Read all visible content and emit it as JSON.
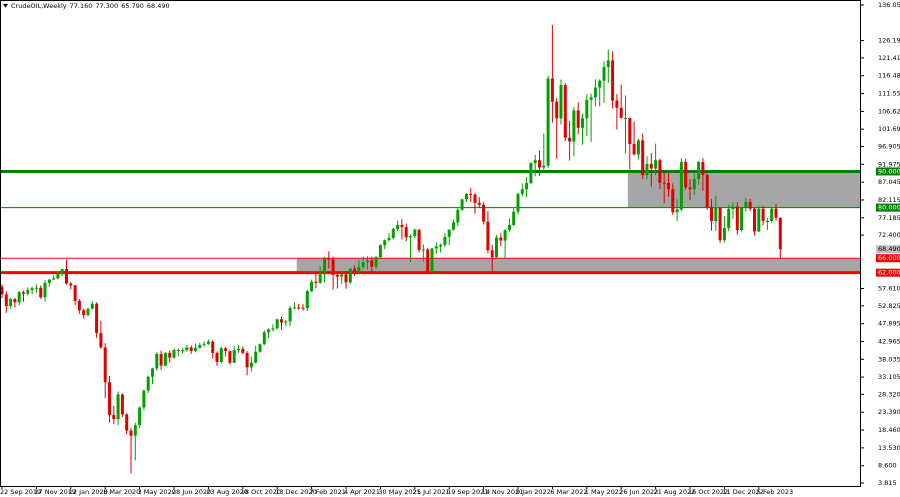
{
  "chart_data": {
    "type": "candlestick",
    "title": "CrudeOIL,Weekly",
    "header_values": [
      {
        "value": 77.16,
        "label": "77.160"
      },
      {
        "value": 77.3,
        "label": "77.300"
      },
      {
        "value": 65.79,
        "label": "65.790"
      },
      {
        "value": 68.49,
        "label": "68.490"
      }
    ],
    "up_color": "#00a000",
    "down_color": "#e00000",
    "ylim": [
      3.815,
      136.05
    ],
    "yticks": [
      {
        "value": 136.05,
        "label": "136.050"
      },
      126.195,
      {
        "value": 121.41,
        "label": "121.410"
      },
      116.485,
      {
        "value": 111.55,
        "label": "111.550"
      },
      {
        "value": 106.62,
        "label": "106.620"
      },
      {
        "value": 101.69,
        "label": "101.690"
      },
      96.905,
      91.975,
      87.045,
      82.115,
      77.185,
      {
        "value": 72.4,
        "label": "72.400"
      },
      {
        "value": 57.61,
        "label": "57.610"
      },
      52.825,
      47.895,
      42.965,
      38.035,
      33.105,
      {
        "value": 28.32,
        "label": "28.320"
      },
      {
        "value": 23.39,
        "label": "23.390"
      },
      {
        "value": 18.46,
        "label": "18.460"
      },
      {
        "value": 13.53,
        "label": "13.530"
      },
      {
        "value": 8.6,
        "label": "8.600"
      },
      3.815
    ],
    "levels": [
      {
        "value": 90,
        "label": "90.000",
        "color": "#008000",
        "thick": true
      },
      {
        "value": 80,
        "label": "80.000",
        "color": "#008000",
        "thick": false
      },
      {
        "value": 66,
        "label": "66.000",
        "color": "#ff0000",
        "thick": false
      },
      {
        "value": 62,
        "label": "62.000",
        "color": "#ff0000",
        "thick": true
      }
    ],
    "zones": [
      {
        "low": 80,
        "high": 90,
        "color": "#a6a6a6"
      },
      {
        "low": 62,
        "high": 66,
        "color": "#a6a6a6"
      }
    ],
    "price_tag": {
      "value": 68.49,
      "label": "68.490"
    },
    "categories": [
      "22 Sep 2019",
      null,
      null,
      null,
      null,
      null,
      null,
      null,
      "17 Nov 2019",
      null,
      null,
      null,
      null,
      null,
      null,
      null,
      "12 Jan 2020",
      null,
      null,
      null,
      null,
      null,
      null,
      null,
      "8 Mar 2020",
      null,
      null,
      null,
      null,
      null,
      null,
      null,
      "3 May 2020",
      null,
      null,
      null,
      null,
      null,
      null,
      null,
      "28 Jun 2020",
      null,
      null,
      null,
      null,
      null,
      null,
      null,
      "23 Aug 2020",
      null,
      null,
      null,
      null,
      null,
      null,
      null,
      "18 Oct 2020",
      null,
      null,
      null,
      null,
      null,
      null,
      null,
      "13 Dec 2020",
      null,
      null,
      null,
      null,
      null,
      null,
      null,
      "7 Feb 2021",
      null,
      null,
      null,
      null,
      null,
      null,
      null,
      "4 Apr 2021",
      null,
      null,
      null,
      null,
      null,
      null,
      null,
      "30 May 2021",
      null,
      null,
      null,
      null,
      null,
      null,
      null,
      "25 Jul 2021",
      null,
      null,
      null,
      null,
      null,
      null,
      null,
      "19 Sep 2021",
      null,
      null,
      null,
      null,
      null,
      null,
      null,
      "14 Nov 2021",
      null,
      null,
      null,
      null,
      null,
      null,
      null,
      "9 Jan 2022",
      null,
      null,
      null,
      null,
      null,
      null,
      null,
      "6 Mar 2022",
      null,
      null,
      null,
      null,
      null,
      null,
      null,
      "1 May 2022",
      null,
      null,
      null,
      null,
      null,
      null,
      null,
      "26 Jun 2022",
      null,
      null,
      null,
      null,
      null,
      null,
      null,
      "21 Aug 2022",
      null,
      null,
      null,
      null,
      null,
      null,
      null,
      "16 Oct 2022",
      null,
      null,
      null,
      null,
      null,
      null,
      null,
      "11 Dec 2022",
      null,
      null,
      null,
      null,
      null,
      null,
      null,
      "5 Feb 2023",
      null,
      null,
      null,
      null,
      null
    ],
    "candles": [
      [
        58.1,
        58.8,
        55.0,
        56.0
      ],
      [
        56.0,
        56.9,
        50.9,
        52.8
      ],
      [
        52.8,
        55.0,
        52.0,
        54.7
      ],
      [
        54.7,
        55.0,
        52.4,
        53.8
      ],
      [
        53.8,
        56.9,
        52.9,
        56.6
      ],
      [
        56.6,
        57.0,
        54.0,
        56.2
      ],
      [
        56.2,
        57.9,
        55.7,
        57.2
      ],
      [
        57.2,
        58.1,
        56.0,
        57.7
      ],
      [
        57.7,
        58.8,
        56.3,
        57.8
      ],
      [
        57.8,
        58.4,
        54.8,
        55.2
      ],
      [
        55.2,
        59.9,
        54.0,
        59.2
      ],
      [
        59.2,
        60.2,
        58.1,
        60.1
      ],
      [
        60.1,
        61.3,
        59.9,
        60.4
      ],
      [
        60.4,
        61.9,
        60.2,
        61.7
      ],
      [
        61.7,
        63.1,
        61.1,
        63.0
      ],
      [
        63.0,
        65.6,
        58.7,
        59.0
      ],
      [
        59.0,
        59.4,
        57.4,
        58.5
      ],
      [
        58.5,
        58.6,
        53.1,
        54.2
      ],
      [
        54.2,
        54.7,
        50.6,
        51.6
      ],
      [
        51.6,
        52.0,
        49.3,
        50.3
      ],
      [
        50.3,
        52.3,
        49.9,
        52.0
      ],
      [
        52.0,
        54.1,
        51.9,
        53.4
      ],
      [
        53.4,
        53.8,
        44.0,
        45.3
      ],
      [
        45.3,
        48.7,
        41.0,
        41.3
      ],
      [
        41.3,
        42.5,
        27.3,
        31.7
      ],
      [
        31.7,
        33.4,
        20.5,
        22.6
      ],
      [
        22.6,
        25.2,
        20.1,
        21.5
      ],
      [
        21.5,
        29.1,
        19.9,
        28.3
      ],
      [
        28.3,
        28.6,
        22.1,
        22.8
      ],
      [
        22.8,
        23.1,
        17.3,
        18.3
      ],
      [
        18.3,
        19.0,
        6.5,
        16.9
      ],
      [
        16.9,
        20.5,
        10.1,
        19.8
      ],
      [
        19.8,
        25.0,
        19.0,
        24.7
      ],
      [
        24.7,
        29.6,
        23.9,
        29.4
      ],
      [
        29.4,
        33.5,
        28.7,
        33.2
      ],
      [
        33.2,
        35.7,
        31.2,
        35.5
      ],
      [
        35.5,
        40.0,
        34.8,
        39.5
      ],
      [
        39.5,
        40.4,
        35.1,
        36.3
      ],
      [
        36.3,
        40.0,
        36.1,
        39.8
      ],
      [
        39.8,
        40.5,
        37.1,
        38.5
      ],
      [
        38.5,
        41.0,
        38.2,
        40.6
      ],
      [
        40.6,
        41.0,
        38.9,
        40.6
      ],
      [
        40.6,
        41.2,
        39.6,
        40.6
      ],
      [
        40.6,
        42.0,
        40.2,
        41.3
      ],
      [
        41.3,
        41.9,
        39.5,
        40.3
      ],
      [
        40.3,
        42.4,
        40.0,
        41.2
      ],
      [
        41.2,
        42.7,
        41.0,
        42.0
      ],
      [
        42.0,
        43.0,
        41.5,
        42.3
      ],
      [
        42.3,
        43.5,
        42.0,
        42.9
      ],
      [
        42.9,
        43.3,
        38.3,
        39.8
      ],
      [
        39.8,
        40.2,
        36.2,
        37.3
      ],
      [
        37.3,
        41.4,
        36.9,
        41.1
      ],
      [
        41.1,
        41.5,
        38.8,
        40.3
      ],
      [
        40.3,
        40.5,
        36.6,
        37.1
      ],
      [
        37.1,
        41.6,
        37.0,
        40.6
      ],
      [
        40.6,
        41.9,
        39.8,
        40.9
      ],
      [
        40.9,
        41.6,
        39.4,
        39.8
      ],
      [
        39.8,
        40.3,
        33.6,
        35.8
      ],
      [
        35.8,
        38.8,
        34.6,
        37.1
      ],
      [
        37.1,
        41.8,
        36.9,
        40.1
      ],
      [
        40.1,
        42.4,
        39.8,
        42.2
      ],
      [
        42.2,
        46.0,
        41.9,
        45.5
      ],
      [
        45.5,
        46.6,
        43.9,
        46.3
      ],
      [
        46.3,
        47.7,
        45.7,
        46.6
      ],
      [
        46.6,
        49.3,
        46.3,
        49.1
      ],
      [
        49.1,
        49.8,
        46.2,
        48.2
      ],
      [
        48.2,
        48.9,
        47.2,
        48.5
      ],
      [
        48.5,
        52.8,
        47.2,
        52.2
      ],
      [
        52.2,
        53.9,
        51.9,
        52.4
      ],
      [
        52.4,
        53.4,
        51.7,
        52.3
      ],
      [
        52.3,
        53.3,
        51.5,
        52.2
      ],
      [
        52.2,
        57.2,
        51.4,
        56.9
      ],
      [
        56.9,
        60.1,
        56.6,
        59.5
      ],
      [
        59.5,
        62.3,
        57.7,
        59.2
      ],
      [
        59.2,
        63.8,
        58.9,
        61.5
      ],
      [
        61.5,
        66.4,
        59.2,
        66.1
      ],
      [
        66.1,
        67.9,
        63.1,
        65.6
      ],
      [
        65.6,
        66.4,
        57.3,
        61.4
      ],
      [
        61.4,
        61.8,
        57.6,
        60.9
      ],
      [
        60.9,
        62.2,
        58.9,
        61.5
      ],
      [
        61.5,
        61.6,
        57.6,
        59.3
      ],
      [
        59.3,
        63.4,
        58.9,
        63.1
      ],
      [
        63.1,
        64.0,
        61.1,
        62.1
      ],
      [
        62.1,
        65.5,
        61.6,
        63.6
      ],
      [
        63.6,
        66.4,
        63.0,
        64.9
      ],
      [
        64.9,
        66.5,
        62.9,
        65.4
      ],
      [
        65.4,
        66.4,
        61.6,
        63.6
      ],
      [
        63.6,
        66.6,
        63.0,
        66.3
      ],
      [
        66.3,
        69.8,
        66.0,
        69.6
      ],
      [
        69.6,
        71.2,
        68.5,
        71.0
      ],
      [
        71.0,
        72.9,
        70.6,
        71.6
      ],
      [
        71.6,
        74.5,
        71.2,
        74.1
      ],
      [
        74.1,
        76.4,
        73.5,
        75.2
      ],
      [
        75.2,
        76.9,
        71.2,
        74.6
      ],
      [
        74.6,
        75.6,
        70.7,
        71.8
      ],
      [
        71.8,
        72.6,
        65.0,
        72.1
      ],
      [
        72.1,
        74.2,
        71.5,
        73.9
      ],
      [
        73.9,
        74.0,
        67.6,
        68.3
      ],
      [
        68.3,
        69.8,
        65.1,
        68.4
      ],
      [
        68.4,
        68.9,
        61.8,
        62.3
      ],
      [
        62.3,
        68.9,
        61.9,
        68.7
      ],
      [
        68.7,
        70.4,
        67.2,
        69.3
      ],
      [
        69.3,
        70.0,
        67.6,
        69.7
      ],
      [
        69.7,
        72.9,
        69.0,
        71.9
      ],
      [
        71.9,
        74.0,
        69.6,
        73.9
      ],
      [
        73.9,
        76.7,
        73.6,
        75.9
      ],
      [
        75.9,
        79.8,
        74.9,
        79.4
      ],
      [
        79.4,
        82.4,
        79.1,
        82.3
      ],
      [
        82.3,
        84.0,
        81.5,
        83.8
      ],
      [
        83.8,
        85.4,
        81.6,
        83.6
      ],
      [
        83.6,
        84.0,
        78.3,
        81.3
      ],
      [
        81.3,
        82.9,
        79.9,
        80.8
      ],
      [
        80.8,
        81.6,
        75.3,
        76.1
      ],
      [
        76.1,
        79.0,
        67.4,
        68.2
      ],
      [
        68.2,
        69.7,
        62.4,
        66.3
      ],
      [
        66.3,
        72.4,
        66.1,
        71.7
      ],
      [
        71.7,
        72.9,
        69.3,
        70.9
      ],
      [
        70.9,
        74.0,
        66.0,
        73.8
      ],
      [
        73.8,
        77.0,
        73.3,
        75.2
      ],
      [
        75.2,
        80.0,
        74.9,
        78.9
      ],
      [
        78.9,
        84.1,
        78.1,
        83.8
      ],
      [
        83.8,
        86.7,
        83.0,
        85.1
      ],
      [
        85.1,
        88.4,
        82.9,
        86.8
      ],
      [
        86.8,
        92.6,
        86.5,
        92.3
      ],
      [
        92.3,
        94.6,
        88.7,
        93.1
      ],
      [
        93.1,
        95.8,
        88.8,
        91.1
      ],
      [
        91.1,
        100.5,
        90.0,
        91.6
      ],
      [
        91.6,
        116.5,
        91.0,
        115.7
      ],
      [
        115.7,
        130.5,
        103.5,
        109.3
      ],
      [
        109.3,
        110.3,
        93.5,
        104.7
      ],
      [
        104.7,
        115.4,
        103.0,
        113.9
      ],
      [
        113.9,
        114.5,
        98.4,
        99.3
      ],
      [
        99.3,
        104.0,
        93.0,
        98.3
      ],
      [
        98.3,
        107.8,
        94.2,
        106.9
      ],
      [
        106.9,
        109.2,
        100.3,
        102.1
      ],
      [
        102.1,
        106.0,
        97.4,
        104.7
      ],
      [
        104.7,
        111.4,
        99.8,
        109.8
      ],
      [
        109.8,
        111.5,
        98.2,
        110.5
      ],
      [
        110.5,
        115.5,
        108.0,
        113.2
      ],
      [
        113.2,
        115.5,
        108.0,
        115.1
      ],
      [
        115.1,
        120.5,
        109.0,
        118.9
      ],
      [
        118.9,
        123.7,
        114.5,
        120.7
      ],
      [
        120.7,
        123.2,
        107.4,
        109.6
      ],
      [
        109.6,
        111.4,
        101.6,
        107.6
      ],
      [
        107.6,
        114.0,
        104.6,
        104.8
      ],
      [
        104.8,
        111.0,
        95.1,
        104.8
      ],
      [
        104.8,
        104.9,
        90.6,
        97.6
      ],
      [
        97.6,
        103.8,
        94.5,
        94.7
      ],
      [
        94.7,
        99.0,
        93.3,
        98.6
      ],
      [
        98.6,
        100.5,
        87.9,
        89.0
      ],
      [
        89.0,
        94.2,
        87.8,
        92.1
      ],
      [
        92.1,
        95.1,
        85.8,
        90.8
      ],
      [
        90.8,
        97.7,
        88.9,
        93.1
      ],
      [
        93.1,
        93.6,
        85.1,
        86.9
      ],
      [
        86.9,
        90.0,
        81.2,
        86.8
      ],
      [
        86.8,
        89.6,
        83.0,
        85.1
      ],
      [
        85.1,
        86.7,
        78.0,
        78.7
      ],
      [
        78.7,
        82.3,
        76.3,
        79.5
      ],
      [
        79.5,
        93.6,
        79.0,
        92.6
      ],
      [
        92.6,
        93.6,
        85.0,
        85.6
      ],
      [
        85.6,
        87.9,
        82.1,
        85.1
      ],
      [
        85.1,
        89.4,
        83.5,
        87.9
      ],
      [
        87.9,
        92.9,
        86.3,
        92.6
      ],
      [
        92.6,
        93.7,
        84.7,
        89.0
      ],
      [
        89.0,
        90.1,
        79.4,
        80.1
      ],
      [
        80.1,
        82.4,
        73.6,
        76.3
      ],
      [
        76.3,
        83.3,
        73.6,
        80.0
      ],
      [
        80.0,
        80.2,
        70.2,
        71.0
      ],
      [
        71.0,
        77.7,
        70.3,
        74.3
      ],
      [
        74.3,
        80.8,
        73.5,
        79.6
      ],
      [
        79.6,
        81.4,
        76.9,
        80.3
      ],
      [
        80.3,
        81.5,
        72.5,
        73.8
      ],
      [
        73.8,
        80.2,
        73.4,
        79.9
      ],
      [
        79.9,
        82.7,
        78.9,
        81.6
      ],
      [
        81.6,
        82.4,
        79.0,
        79.7
      ],
      [
        79.7,
        79.9,
        72.3,
        73.4
      ],
      [
        73.4,
        80.4,
        73.2,
        79.7
      ],
      [
        79.7,
        80.5,
        75.1,
        76.3
      ],
      [
        76.3,
        77.1,
        73.8,
        76.3
      ],
      [
        76.3,
        80.1,
        75.8,
        79.7
      ],
      [
        79.7,
        81.0,
        76.3,
        77.2
      ],
      [
        77.16,
        77.3,
        65.79,
        68.49
      ]
    ]
  }
}
